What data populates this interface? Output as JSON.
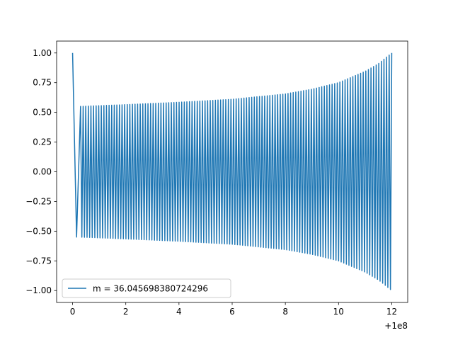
{
  "chart_data": {
    "type": "line",
    "title": "",
    "xlabel": "",
    "ylabel": "",
    "x_offset_label": "+1e8",
    "xlim": [
      -0.6,
      12.6
    ],
    "ylim": [
      -1.1,
      1.1
    ],
    "xticks": [
      0,
      2,
      4,
      6,
      8,
      10,
      12
    ],
    "xtick_labels": [
      "0",
      "2",
      "4",
      "6",
      "8",
      "10",
      "12"
    ],
    "yticks": [
      -1.0,
      -0.75,
      -0.5,
      -0.25,
      0.0,
      0.25,
      0.5,
      0.75,
      1.0
    ],
    "ytick_labels": [
      "−1.00",
      "−0.75",
      "−0.50",
      "−0.25",
      "0.00",
      "0.25",
      "0.50",
      "0.75",
      "1.00"
    ],
    "grid": false,
    "legend_position": "lower-left",
    "series": [
      {
        "name": "m = 36.045698380724296",
        "color": "#1f77b4",
        "x_start": 0,
        "x_end": 12,
        "initial_value": 1.0,
        "cycles": 120,
        "envelope_points": [
          {
            "x": 0.3,
            "amplitude": 0.55
          },
          {
            "x": 2,
            "amplitude": 0.565
          },
          {
            "x": 4,
            "amplitude": 0.585
          },
          {
            "x": 6,
            "amplitude": 0.61
          },
          {
            "x": 8,
            "amplitude": 0.655
          },
          {
            "x": 9,
            "amplitude": 0.695
          },
          {
            "x": 10,
            "amplitude": 0.75
          },
          {
            "x": 11,
            "amplitude": 0.845
          },
          {
            "x": 11.5,
            "amplitude": 0.91
          },
          {
            "x": 12,
            "amplitude": 1.0
          }
        ]
      }
    ]
  }
}
